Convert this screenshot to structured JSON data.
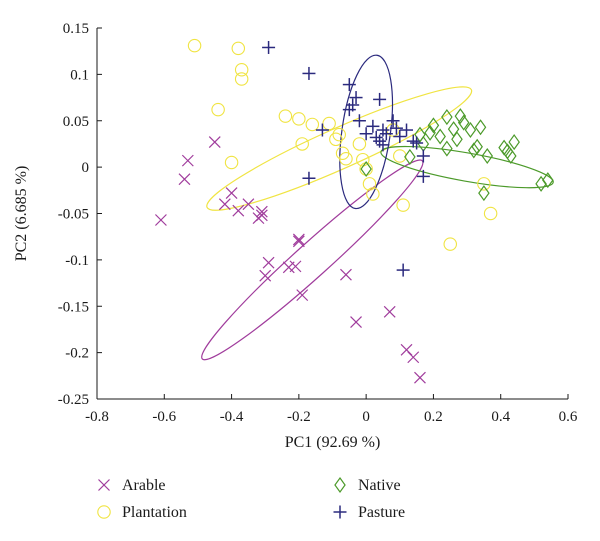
{
  "chart_data": {
    "type": "scatter",
    "xlabel": "PC1 (92.69 %)",
    "ylabel": "PC2 (6.685 %)",
    "xlim": [
      -0.8,
      0.6
    ],
    "ylim": [
      -0.25,
      0.15
    ],
    "x_ticks": [
      -0.8,
      -0.6,
      -0.4,
      -0.2,
      0,
      0.2,
      0.4,
      0.6
    ],
    "x_tick_labels": [
      "-0.8",
      "-0.6",
      "-0.4",
      "-0.2",
      "0",
      "0.2",
      "0.4",
      "0.6"
    ],
    "y_ticks": [
      0.15,
      0.1,
      0.05,
      0,
      -0.05,
      -0.1,
      -0.15,
      -0.2,
      -0.25
    ],
    "y_tick_labels": [
      "0.15",
      "0.1",
      "0.05",
      "0",
      "-0.05",
      "-0.1",
      "-0.15",
      "-0.2",
      "-0.25"
    ],
    "grid": false,
    "legend_position": "bottom",
    "series": [
      {
        "name": "Arable",
        "marker": "x",
        "color": "#a03c9c",
        "points": [
          [
            -0.61,
            -0.057
          ],
          [
            -0.54,
            -0.013
          ],
          [
            -0.53,
            0.007
          ],
          [
            -0.45,
            0.027
          ],
          [
            -0.42,
            -0.04
          ],
          [
            -0.4,
            -0.028
          ],
          [
            -0.38,
            -0.047
          ],
          [
            -0.35,
            -0.04
          ],
          [
            -0.32,
            -0.055
          ],
          [
            -0.31,
            -0.048
          ],
          [
            -0.31,
            -0.052
          ],
          [
            -0.3,
            -0.117
          ],
          [
            -0.29,
            -0.103
          ],
          [
            -0.23,
            -0.108
          ],
          [
            -0.2,
            -0.078
          ],
          [
            -0.2,
            -0.08
          ],
          [
            -0.21,
            -0.107
          ],
          [
            -0.19,
            -0.138
          ],
          [
            -0.06,
            -0.116
          ],
          [
            -0.03,
            -0.167
          ],
          [
            0.07,
            -0.156
          ],
          [
            0.12,
            -0.197
          ],
          [
            0.14,
            -0.205
          ],
          [
            0.16,
            -0.227
          ]
        ],
        "ellipse": {
          "cx": -0.16,
          "cy": -0.1,
          "rx": 0.44,
          "ry": 0.05,
          "angle_deg": -42
        }
      },
      {
        "name": "Plantation",
        "marker": "circle",
        "color": "#f0e442",
        "points": [
          [
            -0.51,
            0.131
          ],
          [
            -0.38,
            0.128
          ],
          [
            -0.37,
            0.105
          ],
          [
            -0.37,
            0.095
          ],
          [
            -0.44,
            0.062
          ],
          [
            -0.24,
            0.055
          ],
          [
            -0.2,
            0.052
          ],
          [
            -0.19,
            0.025
          ],
          [
            -0.16,
            0.046
          ],
          [
            -0.11,
            0.047
          ],
          [
            -0.08,
            0.035
          ],
          [
            -0.09,
            0.03
          ],
          [
            -0.07,
            0.015
          ],
          [
            -0.06,
            0.009
          ],
          [
            -0.01,
            0.008
          ],
          [
            0.0,
            -0.002
          ],
          [
            0.01,
            -0.018
          ],
          [
            0.02,
            -0.029
          ],
          [
            -0.02,
            0.025
          ],
          [
            0.08,
            0.04
          ],
          [
            0.1,
            0.012
          ],
          [
            0.11,
            -0.041
          ],
          [
            0.25,
            -0.083
          ],
          [
            0.37,
            -0.05
          ],
          [
            0.35,
            -0.018
          ],
          [
            -0.4,
            0.005
          ]
        ],
        "ellipse": {
          "cx": -0.08,
          "cy": 0.02,
          "rx": 0.43,
          "ry": 0.06,
          "angle_deg": -24
        }
      },
      {
        "name": "Native",
        "marker": "diamond",
        "color": "#4c9a2a",
        "points": [
          [
            0.13,
            0.011
          ],
          [
            0.17,
            0.025
          ],
          [
            0.19,
            0.037
          ],
          [
            0.2,
            0.045
          ],
          [
            0.22,
            0.033
          ],
          [
            0.24,
            0.054
          ],
          [
            0.26,
            0.041
          ],
          [
            0.27,
            0.03
          ],
          [
            0.28,
            0.055
          ],
          [
            0.29,
            0.048
          ],
          [
            0.31,
            0.04
          ],
          [
            0.32,
            0.018
          ],
          [
            0.33,
            0.022
          ],
          [
            0.34,
            0.043
          ],
          [
            0.35,
            -0.028
          ],
          [
            0.36,
            0.012
          ],
          [
            0.41,
            0.021
          ],
          [
            0.42,
            0.017
          ],
          [
            0.43,
            0.012
          ],
          [
            0.44,
            0.027
          ],
          [
            0.52,
            -0.018
          ],
          [
            0.54,
            -0.014
          ],
          [
            0.0,
            -0.002
          ],
          [
            0.24,
            0.02
          ],
          [
            0.16,
            0.035
          ]
        ],
        "ellipse": {
          "cx": 0.3,
          "cy": 0.0,
          "rx": 0.26,
          "ry": 0.042,
          "angle_deg": 10
        }
      },
      {
        "name": "Pasture",
        "marker": "plus",
        "color": "#2b2a7e",
        "points": [
          [
            -0.29,
            0.129
          ],
          [
            -0.17,
            0.101
          ],
          [
            -0.13,
            0.04
          ],
          [
            -0.17,
            -0.012
          ],
          [
            -0.05,
            0.089
          ],
          [
            -0.05,
            0.062
          ],
          [
            -0.04,
            0.067
          ],
          [
            -0.03,
            0.075
          ],
          [
            -0.02,
            0.05
          ],
          [
            0.0,
            0.036
          ],
          [
            0.02,
            0.044
          ],
          [
            0.03,
            0.032
          ],
          [
            0.04,
            0.028
          ],
          [
            0.05,
            0.024
          ],
          [
            0.05,
            0.04
          ],
          [
            0.06,
            0.036
          ],
          [
            0.08,
            0.05
          ],
          [
            0.09,
            0.042
          ],
          [
            0.1,
            0.033
          ],
          [
            0.12,
            0.04
          ],
          [
            0.14,
            0.028
          ],
          [
            0.15,
            0.026
          ],
          [
            0.17,
            0.012
          ],
          [
            0.17,
            -0.01
          ],
          [
            0.04,
            0.073
          ],
          [
            0.11,
            -0.111
          ]
        ],
        "ellipse": {
          "cx": 0.0,
          "cy": 0.038,
          "rx": 0.23,
          "ry": 0.072,
          "angle_deg": -82
        }
      }
    ]
  }
}
